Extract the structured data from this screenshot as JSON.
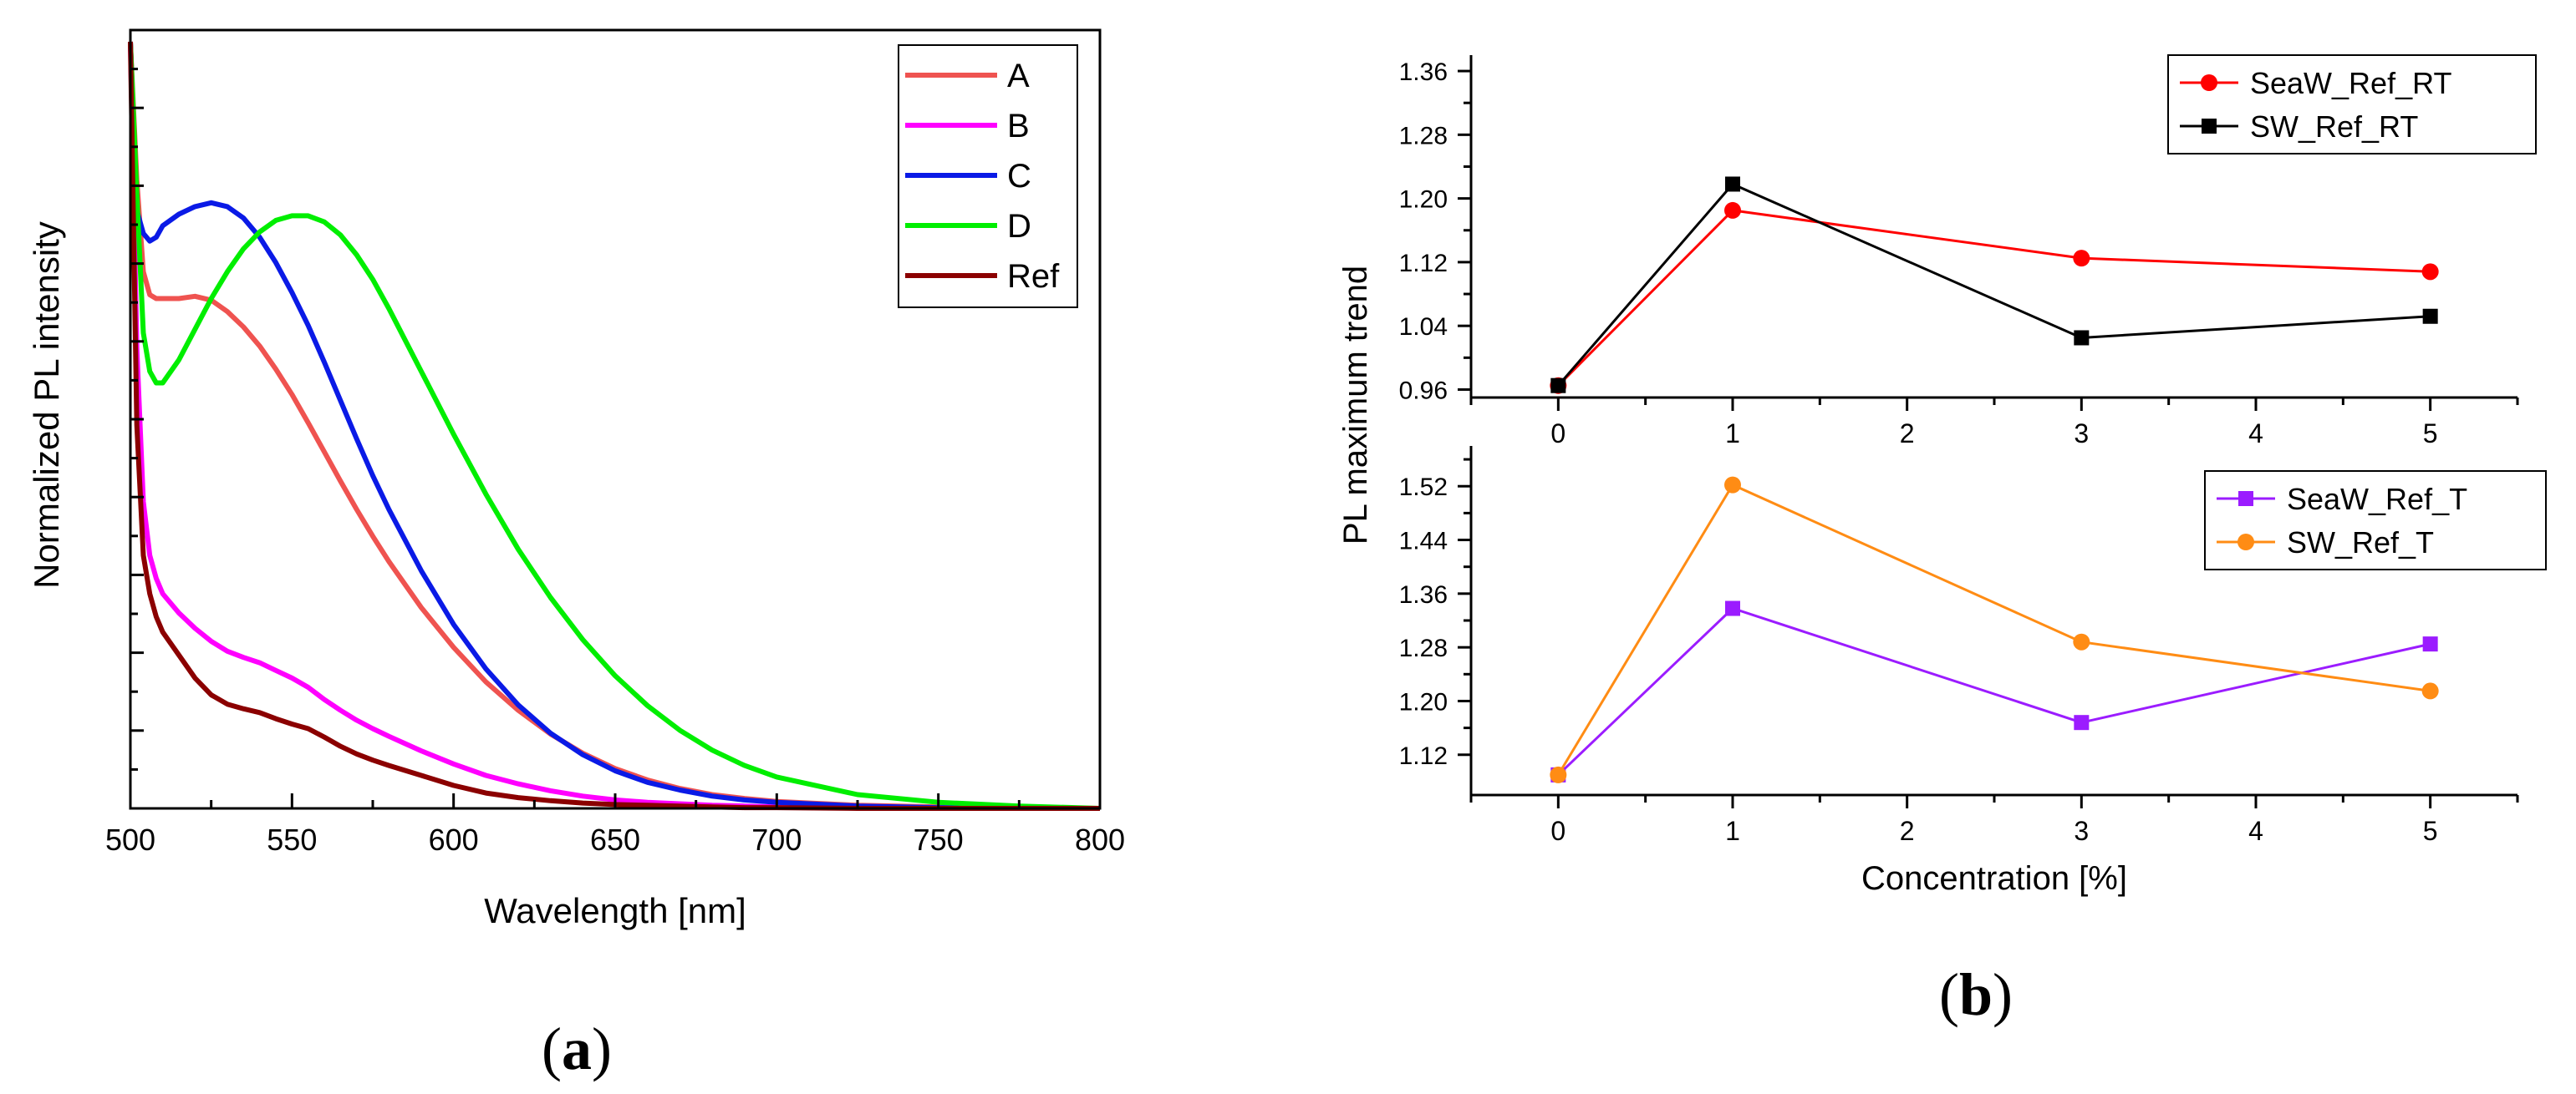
{
  "figure": {
    "panel_a_label": {
      "open": "(",
      "letter": "a",
      "close": ")"
    },
    "panel_b_label": {
      "open": "(",
      "letter": "b",
      "close": ")"
    }
  },
  "chart_data": [
    {
      "type": "line",
      "title": "",
      "xlabel": "Wavelength [nm]",
      "ylabel": "Normalized PL intensity",
      "xlim": [
        500,
        800
      ],
      "ylim": [
        0,
        1
      ],
      "xticks": [
        "500",
        "550",
        "600",
        "650",
        "700",
        "750",
        "800"
      ],
      "xtick_values": [
        500,
        550,
        600,
        650,
        700,
        750,
        800
      ],
      "legend_position": "top-right",
      "x": [
        500,
        502,
        504,
        506,
        508,
        510,
        515,
        520,
        525,
        530,
        535,
        540,
        545,
        550,
        555,
        560,
        565,
        570,
        575,
        580,
        590,
        600,
        610,
        620,
        630,
        640,
        650,
        660,
        670,
        680,
        690,
        700,
        725,
        750,
        775,
        800
      ],
      "series": [
        {
          "name": "A",
          "color": "#ef5350",
          "values": [
            1.0,
            0.82,
            0.7,
            0.67,
            0.665,
            0.665,
            0.665,
            0.668,
            0.663,
            0.648,
            0.628,
            0.603,
            0.573,
            0.54,
            0.503,
            0.465,
            0.427,
            0.39,
            0.355,
            0.322,
            0.262,
            0.21,
            0.165,
            0.128,
            0.097,
            0.072,
            0.052,
            0.037,
            0.026,
            0.018,
            0.013,
            0.009,
            0.004,
            0.002,
            0.001,
            0.0
          ]
        },
        {
          "name": "B",
          "color": "#ff00ff",
          "values": [
            1.0,
            0.6,
            0.4,
            0.33,
            0.3,
            0.28,
            0.255,
            0.235,
            0.218,
            0.205,
            0.197,
            0.19,
            0.18,
            0.17,
            0.158,
            0.142,
            0.128,
            0.115,
            0.104,
            0.094,
            0.075,
            0.058,
            0.043,
            0.032,
            0.023,
            0.016,
            0.011,
            0.008,
            0.006,
            0.004,
            0.003,
            0.002,
            0.001,
            0.0,
            0.0,
            0.0
          ]
        },
        {
          "name": "C",
          "color": "#0a1ae6",
          "values": [
            1.0,
            0.78,
            0.75,
            0.74,
            0.745,
            0.76,
            0.775,
            0.785,
            0.79,
            0.785,
            0.77,
            0.745,
            0.712,
            0.673,
            0.63,
            0.582,
            0.532,
            0.482,
            0.434,
            0.39,
            0.31,
            0.24,
            0.182,
            0.135,
            0.098,
            0.07,
            0.049,
            0.034,
            0.024,
            0.016,
            0.011,
            0.008,
            0.003,
            0.001,
            0.0,
            0.0
          ]
        },
        {
          "name": "D",
          "color": "#00ee00",
          "values": [
            1.0,
            0.8,
            0.62,
            0.57,
            0.555,
            0.555,
            0.585,
            0.625,
            0.665,
            0.7,
            0.73,
            0.752,
            0.767,
            0.773,
            0.773,
            0.765,
            0.748,
            0.722,
            0.69,
            0.652,
            0.57,
            0.488,
            0.41,
            0.338,
            0.275,
            0.22,
            0.173,
            0.134,
            0.102,
            0.076,
            0.056,
            0.041,
            0.018,
            0.008,
            0.003,
            0.0
          ]
        },
        {
          "name": "Ref",
          "color": "#8b0000",
          "values": [
            1.0,
            0.5,
            0.33,
            0.28,
            0.25,
            0.23,
            0.2,
            0.17,
            0.148,
            0.136,
            0.13,
            0.125,
            0.117,
            0.11,
            0.104,
            0.093,
            0.081,
            0.071,
            0.063,
            0.056,
            0.043,
            0.03,
            0.02,
            0.014,
            0.01,
            0.007,
            0.005,
            0.004,
            0.003,
            0.002,
            0.001,
            0.001,
            0.0,
            0.0,
            0.0,
            0.0
          ]
        }
      ]
    },
    {
      "type": "line",
      "title": "",
      "xlabel": "",
      "ylabel": "PL maximum trend",
      "xlim": [
        -0.5,
        5.5
      ],
      "ylim": [
        0.95,
        1.38
      ],
      "xticks": [
        "0",
        "1",
        "2",
        "3",
        "4",
        "5"
      ],
      "xtick_values": [
        0,
        1,
        2,
        3,
        4,
        5
      ],
      "yticks": [
        "0.96",
        "1.04",
        "1.12",
        "1.20",
        "1.28",
        "1.36"
      ],
      "ytick_values": [
        0.96,
        1.04,
        1.12,
        1.2,
        1.28,
        1.36
      ],
      "legend_position": "top-right",
      "x": [
        0,
        1,
        3,
        5
      ],
      "series": [
        {
          "name": "SeaW_Ref_RT",
          "color": "#ff0000",
          "marker": "circle",
          "values": [
            0.965,
            1.185,
            1.125,
            1.108
          ]
        },
        {
          "name": "SW_Ref_RT",
          "color": "#000000",
          "marker": "square",
          "values": [
            0.965,
            1.218,
            1.025,
            1.052
          ]
        }
      ]
    },
    {
      "type": "line",
      "title": "",
      "xlabel": "Concentration [%]",
      "ylabel": "",
      "xlim": [
        -0.5,
        5.5
      ],
      "ylim": [
        1.06,
        1.58
      ],
      "xticks": [
        "0",
        "1",
        "2",
        "3",
        "4",
        "5"
      ],
      "xtick_values": [
        0,
        1,
        2,
        3,
        4,
        5
      ],
      "yticks": [
        "1.12",
        "1.20",
        "1.28",
        "1.36",
        "1.44",
        "1.52"
      ],
      "ytick_values": [
        1.12,
        1.2,
        1.28,
        1.36,
        1.44,
        1.52
      ],
      "legend_position": "top-right",
      "x": [
        0,
        1,
        3,
        5
      ],
      "series": [
        {
          "name": "SeaW_Ref_T",
          "color": "#9b1cff",
          "marker": "square",
          "values": [
            1.09,
            1.338,
            1.168,
            1.285
          ]
        },
        {
          "name": "SW_Ref_T",
          "color": "#ff8c14",
          "marker": "circle",
          "values": [
            1.09,
            1.522,
            1.288,
            1.215
          ]
        }
      ]
    }
  ]
}
